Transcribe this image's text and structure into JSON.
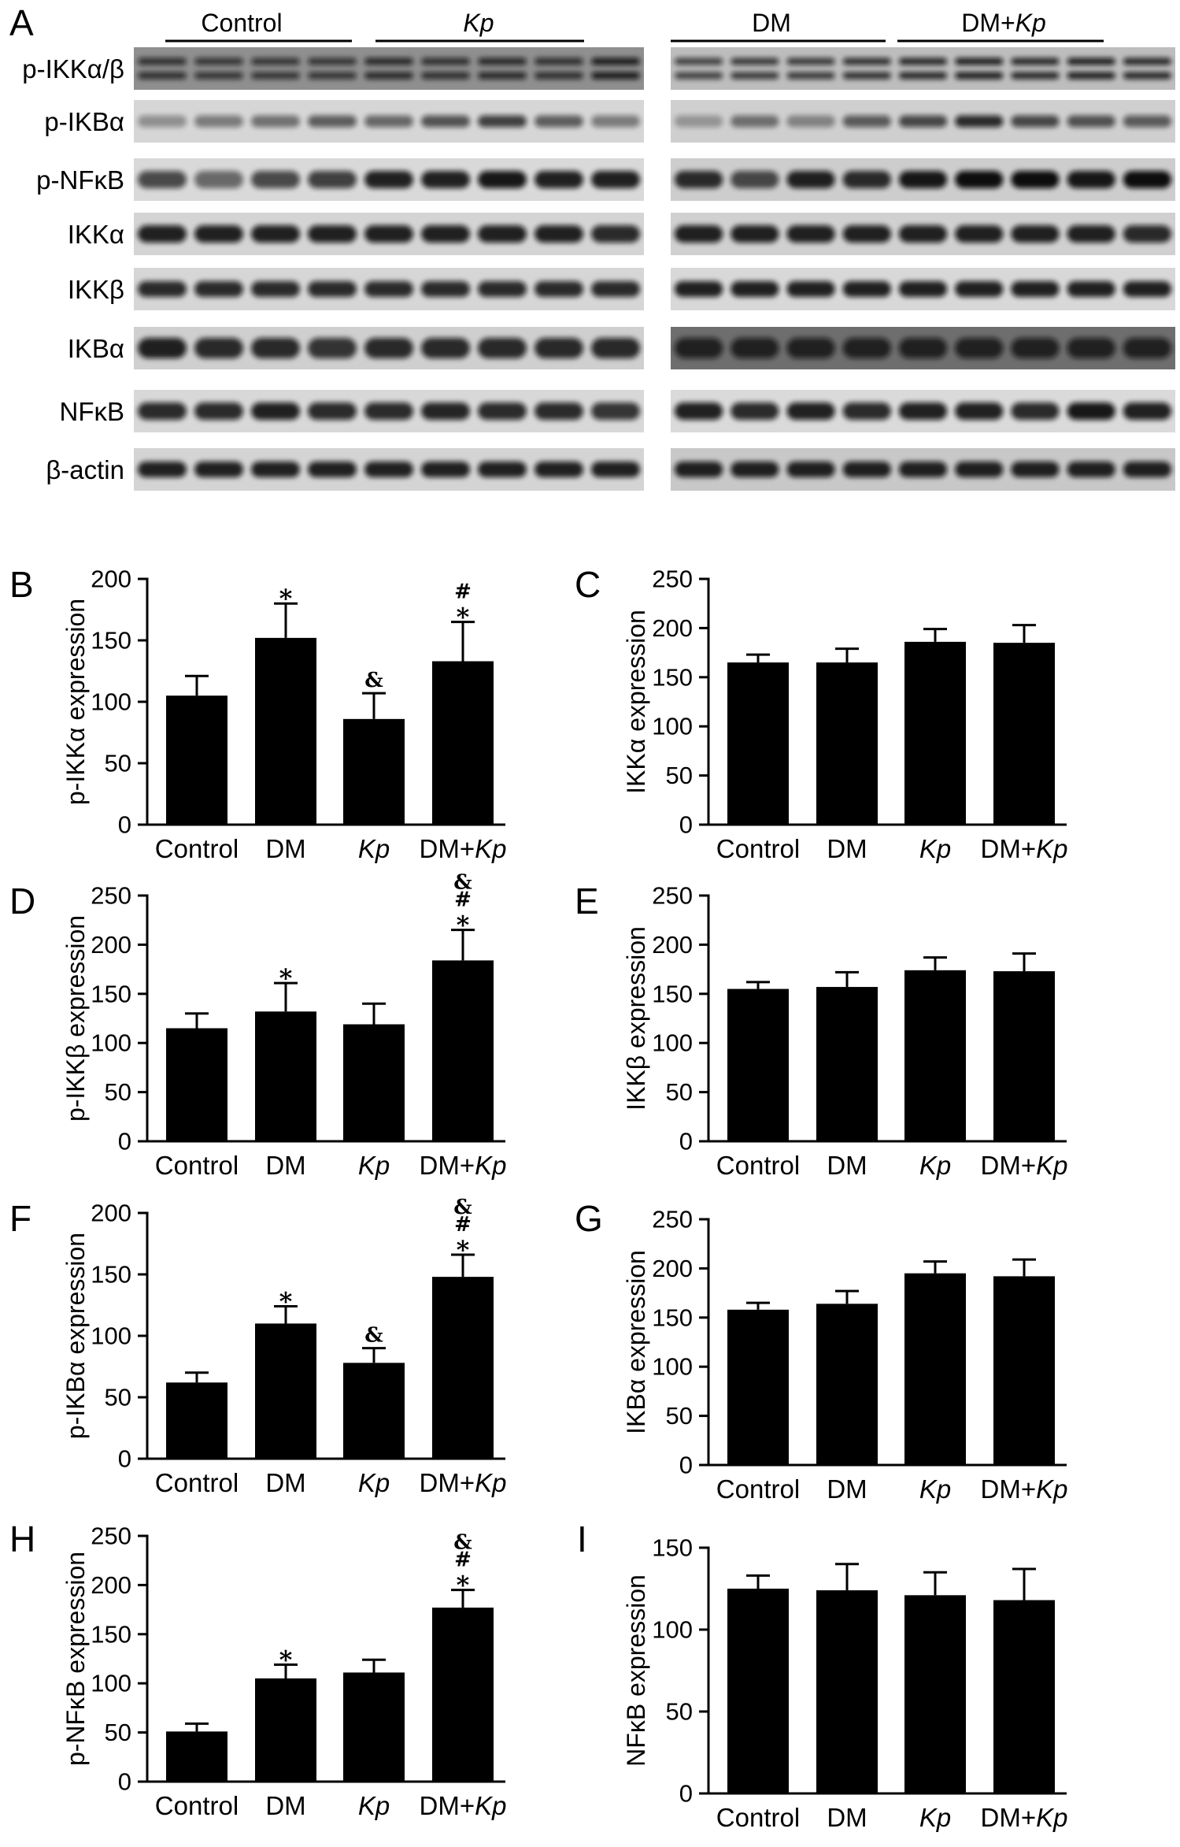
{
  "blot": {
    "panel": "A",
    "group_labels": [
      "Control",
      "Kp",
      "DM",
      "DM+Kp"
    ],
    "row_labels": [
      "p-IKKα/β",
      "p-IKBα",
      "p-NFκB",
      "IKKα",
      "IKKβ",
      "IKBα",
      "NFκB",
      "β-actin"
    ]
  },
  "chart_data": [
    {
      "panel": "B",
      "type": "bar",
      "categories": [
        "Control",
        "DM",
        "Kp",
        "DM+Kp"
      ],
      "values": [
        105,
        152,
        86,
        133
      ],
      "error": [
        16,
        28,
        21,
        32
      ],
      "annotations": [
        [],
        [
          "*"
        ],
        [
          "&"
        ],
        [
          "#",
          "*"
        ]
      ],
      "xlabel": "",
      "ylabel": "p-IKKα expression",
      "ylim": [
        0,
        200
      ],
      "yticks": [
        0,
        50,
        100,
        150,
        200
      ],
      "grid": false,
      "bar_color": "#000000"
    },
    {
      "panel": "C",
      "type": "bar",
      "categories": [
        "Control",
        "DM",
        "Kp",
        "DM+Kp"
      ],
      "values": [
        165,
        165,
        186,
        185
      ],
      "error": [
        8,
        14,
        13,
        18
      ],
      "annotations": [
        [],
        [],
        [],
        []
      ],
      "xlabel": "",
      "ylabel": "IKKα expression",
      "ylim": [
        0,
        250
      ],
      "yticks": [
        0,
        50,
        100,
        150,
        200,
        250
      ],
      "grid": false,
      "bar_color": "#000000"
    },
    {
      "panel": "D",
      "type": "bar",
      "categories": [
        "Control",
        "DM",
        "Kp",
        "DM+Kp"
      ],
      "values": [
        115,
        132,
        119,
        184
      ],
      "error": [
        15,
        29,
        21,
        31
      ],
      "annotations": [
        [],
        [
          "*"
        ],
        [],
        [
          "&",
          "#",
          "*"
        ]
      ],
      "xlabel": "",
      "ylabel": "p-IKKβ expression",
      "ylim": [
        0,
        250
      ],
      "yticks": [
        0,
        50,
        100,
        150,
        200,
        250
      ],
      "grid": false,
      "bar_color": "#000000"
    },
    {
      "panel": "E",
      "type": "bar",
      "categories": [
        "Control",
        "DM",
        "Kp",
        "DM+Kp"
      ],
      "values": [
        155,
        157,
        174,
        173
      ],
      "error": [
        7,
        15,
        13,
        18
      ],
      "annotations": [
        [],
        [],
        [],
        []
      ],
      "xlabel": "",
      "ylabel": "IKKβ expression",
      "ylim": [
        0,
        250
      ],
      "yticks": [
        0,
        50,
        100,
        150,
        200,
        250
      ],
      "grid": false,
      "bar_color": "#000000"
    },
    {
      "panel": "F",
      "type": "bar",
      "categories": [
        "Control",
        "DM",
        "Kp",
        "DM+Kp"
      ],
      "values": [
        62,
        110,
        78,
        148
      ],
      "error": [
        8,
        14,
        12,
        18
      ],
      "annotations": [
        [],
        [
          "*"
        ],
        [
          "&"
        ],
        [
          "&",
          "#",
          "*"
        ]
      ],
      "xlabel": "",
      "ylabel": "p-IKBα expression",
      "ylim": [
        0,
        200
      ],
      "yticks": [
        0,
        50,
        100,
        150,
        200
      ],
      "grid": false,
      "bar_color": "#000000"
    },
    {
      "panel": "G",
      "type": "bar",
      "categories": [
        "Control",
        "DM",
        "Kp",
        "DM+Kp"
      ],
      "values": [
        158,
        164,
        195,
        192
      ],
      "error": [
        7,
        13,
        12,
        17
      ],
      "annotations": [
        [],
        [],
        [],
        []
      ],
      "xlabel": "",
      "ylabel": "IKBα expression",
      "ylim": [
        0,
        250
      ],
      "yticks": [
        0,
        50,
        100,
        150,
        200,
        250
      ],
      "grid": false,
      "bar_color": "#000000"
    },
    {
      "panel": "H",
      "type": "bar",
      "categories": [
        "Control",
        "DM",
        "Kp",
        "DM+Kp"
      ],
      "values": [
        51,
        105,
        111,
        177
      ],
      "error": [
        8,
        14,
        13,
        18
      ],
      "annotations": [
        [],
        [
          "*"
        ],
        [],
        [
          "&",
          "#",
          "*"
        ]
      ],
      "xlabel": "",
      "ylabel": "p-NFκB expression",
      "ylim": [
        0,
        250
      ],
      "yticks": [
        0,
        50,
        100,
        150,
        200,
        250
      ],
      "grid": false,
      "bar_color": "#000000"
    },
    {
      "panel": "I",
      "type": "bar",
      "categories": [
        "Control",
        "DM",
        "Kp",
        "DM+Kp"
      ],
      "values": [
        125,
        124,
        121,
        118
      ],
      "error": [
        8,
        16,
        14,
        19
      ],
      "annotations": [
        [],
        [],
        [],
        []
      ],
      "xlabel": "",
      "ylabel": "NFκB expression",
      "ylim": [
        0,
        150
      ],
      "yticks": [
        0,
        50,
        100,
        150
      ],
      "grid": false,
      "bar_color": "#000000"
    }
  ]
}
